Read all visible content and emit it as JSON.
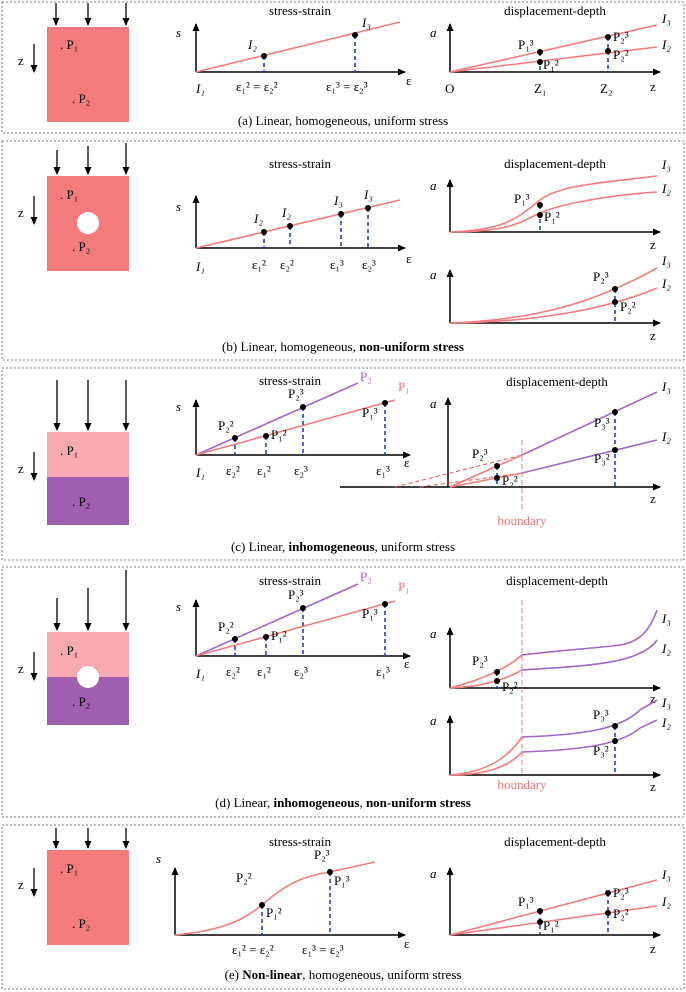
{
  "panels": [
    {
      "caption": [
        {
          "text": "(a) Linear, homogeneous, uniform stress",
          "bold": false
        }
      ],
      "block": {
        "points": [
          ". P₁",
          ". P₂"
        ],
        "z": "z"
      },
      "stress_strain": {
        "title": "stress-strain",
        "y_axis": "s",
        "x_axis": "ε",
        "origin": "I₁",
        "points": [
          "I₂",
          "I₃"
        ],
        "ticks": [
          "ε₁² = ε₂²",
          "ε₁³ = ε₂³"
        ]
      },
      "displacement_depth": {
        "title": "displacement-depth",
        "y_axis": "a",
        "x_axis": "z",
        "origin": "O",
        "curves": [
          "I₃",
          "I₂"
        ],
        "points": [
          "P₁³",
          "P₁²",
          "P₂³",
          "P₂²"
        ],
        "ticks": [
          "Z₁",
          "Z₂"
        ]
      }
    },
    {
      "caption": [
        {
          "text": "(b) Linear, homogeneous, ",
          "bold": false
        },
        {
          "text": "non-uniform stress",
          "bold": true
        }
      ],
      "block": {
        "points": [
          ". P₁",
          ". P₂"
        ],
        "z": "z"
      },
      "stress_strain": {
        "title": "stress-strain",
        "y_axis": "s",
        "x_axis": "ε",
        "origin": "I₁",
        "points": [
          "I₂",
          "I₂",
          "I₃",
          "I₃"
        ],
        "ticks": [
          "ε₁²",
          "ε₂²",
          "ε₁³",
          "ε₂³"
        ]
      },
      "displacement_depth": {
        "title": "displacement-depth",
        "y_axis": "a",
        "x_axis": "z",
        "curves": [
          "I₃",
          "I₂"
        ],
        "points": [
          "P₁³",
          "P₁²"
        ]
      },
      "displacement_depth_2": {
        "y_axis": "a",
        "x_axis": "z",
        "curves": [
          "I₃",
          "I₂"
        ],
        "points": [
          "P₂³",
          "P₂²"
        ]
      }
    },
    {
      "caption": [
        {
          "text": "(c) Linear, ",
          "bold": false
        },
        {
          "text": "inhomogeneous",
          "bold": true
        },
        {
          "text": ", uniform stress",
          "bold": false
        }
      ],
      "block": {
        "points": [
          ". P₁",
          ". P₂"
        ],
        "z": "z"
      },
      "stress_strain": {
        "title": "stress-strain",
        "y_axis": "s",
        "x_axis": "ε",
        "origin": "I₁",
        "lines": [
          "P₂",
          "P₁"
        ],
        "points": [
          "P₂²",
          "P₁²",
          "P₂³",
          "P₁³"
        ],
        "ticks": [
          "ε₂²",
          "ε₁²",
          "ε₂³",
          "ε₁³"
        ]
      },
      "displacement_depth": {
        "title": "displacement-depth",
        "y_axis": "a",
        "x_axis": "z",
        "curves": [
          "I₃",
          "I₂"
        ],
        "points": [
          "P₂³",
          "P₂²",
          "P₃³",
          "P₃²"
        ],
        "boundary": "boundary"
      }
    },
    {
      "caption": [
        {
          "text": "(d) Linear, ",
          "bold": false
        },
        {
          "text": "inhomogeneous",
          "bold": true
        },
        {
          "text": ", ",
          "bold": false
        },
        {
          "text": "non-uniform stress",
          "bold": true
        }
      ],
      "block": {
        "points": [
          ". P₁",
          ". P₂"
        ],
        "z": "z"
      },
      "stress_strain": {
        "title": "stress-strain",
        "y_axis": "s",
        "x_axis": "ε",
        "origin": "I₁",
        "lines": [
          "P₂",
          "P₁"
        ],
        "points": [
          "P₂²",
          "P₁²",
          "P₂³",
          "P₁³"
        ],
        "ticks": [
          "ε₂²",
          "ε₁²",
          "ε₂³",
          "ε₁³"
        ]
      },
      "displacement_depth": {
        "title": "displacement-depth",
        "y_axis": "a",
        "x_axis": "z",
        "curves": [
          "I₃",
          "I₂"
        ],
        "points": [
          "P₂³",
          "P₂²"
        ]
      },
      "displacement_depth_2": {
        "y_axis": "a",
        "x_axis": "z",
        "curves": [
          "I₃",
          "I₂"
        ],
        "points": [
          "P₃³",
          "P₃²"
        ],
        "boundary": "boundary"
      }
    },
    {
      "caption": [
        {
          "text": "(e) ",
          "bold": false
        },
        {
          "text": "Non-linear",
          "bold": true
        },
        {
          "text": ", homogeneous, uniform stress",
          "bold": false
        }
      ],
      "block": {
        "points": [
          ". P₁",
          ". P₂"
        ],
        "z": "z"
      },
      "stress_strain": {
        "title": "stress-strain",
        "y_axis": "s",
        "x_axis": "ε",
        "points": [
          "P₂²",
          "P₁²",
          "P₂³",
          "P₁³"
        ],
        "ticks": [
          "ε₁² = ε₂²",
          "ε₁³ = ε₂³"
        ]
      },
      "displacement_depth": {
        "title": "displacement-depth",
        "y_axis": "a",
        "x_axis": "z",
        "curves": [
          "I₃",
          "I₂"
        ],
        "points": [
          "P₁³",
          "P₁²",
          "P₂³",
          "P₂²"
        ]
      }
    }
  ]
}
